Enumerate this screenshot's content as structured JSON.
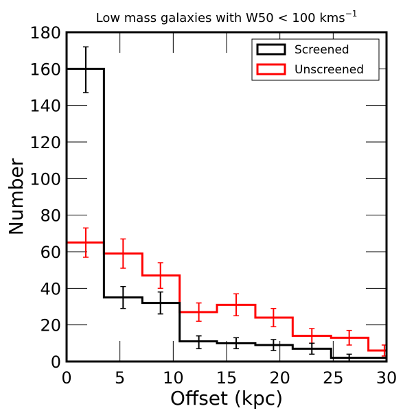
{
  "chart_data": {
    "type": "step-histogram",
    "title": "Low mass galaxies with W50 < 100 kms",
    "title_superscript": "−1",
    "xlabel": "Offset (kpc)",
    "ylabel": "Number",
    "xlim": [
      0,
      30
    ],
    "ylim": [
      0,
      180
    ],
    "x_ticks": [
      0,
      5,
      10,
      15,
      20,
      25,
      30
    ],
    "y_ticks": [
      0,
      20,
      40,
      60,
      80,
      100,
      120,
      140,
      160,
      180
    ],
    "grid": false,
    "legend_position": "top-right",
    "bin_edges": [
      0,
      3.5,
      7.1,
      10.6,
      14.1,
      17.7,
      21.2,
      24.8,
      28.3,
      30
    ],
    "series": [
      {
        "name": "Screened",
        "color": "#000000",
        "counts": [
          160,
          35,
          32,
          11,
          10,
          9,
          7,
          2,
          2
        ],
        "errors": [
          {
            "x": 1.8,
            "y": 160,
            "lo": 147,
            "hi": 172
          },
          {
            "x": 5.3,
            "y": 35,
            "lo": 29,
            "hi": 41
          },
          {
            "x": 8.8,
            "y": 32,
            "lo": 26,
            "hi": 38
          },
          {
            "x": 12.4,
            "y": 11,
            "lo": 7,
            "hi": 14
          },
          {
            "x": 15.9,
            "y": 10,
            "lo": 7,
            "hi": 13
          },
          {
            "x": 19.4,
            "y": 9,
            "lo": 6,
            "hi": 12
          },
          {
            "x": 23.0,
            "y": 7,
            "lo": 4,
            "hi": 10
          },
          {
            "x": 26.5,
            "y": 2,
            "lo": 0,
            "hi": 4
          }
        ]
      },
      {
        "name": "Unscreened",
        "color": "#ff0000",
        "counts": [
          65,
          59,
          47,
          27,
          31,
          24,
          14,
          13,
          6
        ],
        "errors": [
          {
            "x": 1.8,
            "y": 65,
            "lo": 57,
            "hi": 73
          },
          {
            "x": 5.3,
            "y": 59,
            "lo": 51,
            "hi": 67
          },
          {
            "x": 8.8,
            "y": 47,
            "lo": 40,
            "hi": 54
          },
          {
            "x": 12.4,
            "y": 27,
            "lo": 22,
            "hi": 32
          },
          {
            "x": 15.9,
            "y": 31,
            "lo": 25,
            "hi": 37
          },
          {
            "x": 19.4,
            "y": 24,
            "lo": 19,
            "hi": 29
          },
          {
            "x": 23.0,
            "y": 14,
            "lo": 10,
            "hi": 18
          },
          {
            "x": 26.5,
            "y": 13,
            "lo": 9,
            "hi": 17
          },
          {
            "x": 29.8,
            "y": 6,
            "lo": 3,
            "hi": 9
          }
        ]
      }
    ]
  }
}
